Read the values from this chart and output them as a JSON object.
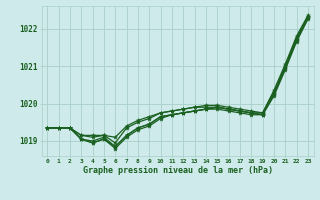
{
  "title": "Graphe pression niveau de la mer (hPa)",
  "background_color": "#ceeaea",
  "grid_color": "#a8cfc8",
  "line_color": "#1a6020",
  "xlim": [
    -0.5,
    23.5
  ],
  "ylim": [
    1018.6,
    1022.6
  ],
  "yticks": [
    1019,
    1020,
    1021,
    1022
  ],
  "xticks": [
    0,
    1,
    2,
    3,
    4,
    5,
    6,
    7,
    8,
    9,
    10,
    11,
    12,
    13,
    14,
    15,
    16,
    17,
    18,
    19,
    20,
    21,
    22,
    23
  ],
  "series": [
    [
      1019.35,
      1019.35,
      1019.35,
      1019.15,
      1019.15,
      1019.15,
      1018.95,
      1019.35,
      1019.5,
      1019.6,
      1019.75,
      1019.8,
      1019.85,
      1019.9,
      1019.95,
      1019.95,
      1019.9,
      1019.85,
      1019.8,
      1019.75,
      1020.35,
      1021.05,
      1021.8,
      1022.35
    ],
    [
      1019.35,
      1019.35,
      1019.35,
      1019.15,
      1019.1,
      1019.15,
      1019.1,
      1019.4,
      1019.55,
      1019.65,
      1019.75,
      1019.8,
      1019.85,
      1019.9,
      1019.9,
      1019.9,
      1019.85,
      1019.8,
      1019.75,
      1019.75,
      1020.3,
      1021.0,
      1021.75,
      1022.3
    ],
    [
      1019.35,
      1019.35,
      1019.35,
      1019.05,
      1018.95,
      1019.05,
      1018.85,
      1019.15,
      1019.35,
      1019.45,
      1019.65,
      1019.7,
      1019.75,
      1019.8,
      1019.85,
      1019.9,
      1019.85,
      1019.8,
      1019.75,
      1019.7,
      1020.25,
      1020.95,
      1021.7,
      1022.3
    ],
    [
      1019.35,
      1019.35,
      1019.35,
      1019.05,
      1018.95,
      1019.05,
      1018.8,
      1019.1,
      1019.3,
      1019.4,
      1019.6,
      1019.7,
      1019.75,
      1019.8,
      1019.85,
      1019.9,
      1019.85,
      1019.8,
      1019.75,
      1019.7,
      1020.25,
      1020.95,
      1021.7,
      1022.3
    ],
    [
      1019.35,
      1019.35,
      1019.35,
      1019.05,
      1019.0,
      1019.1,
      1018.85,
      1019.15,
      1019.35,
      1019.45,
      1019.65,
      1019.7,
      1019.75,
      1019.8,
      1019.85,
      1019.85,
      1019.8,
      1019.75,
      1019.7,
      1019.7,
      1020.2,
      1020.9,
      1021.65,
      1022.25
    ]
  ]
}
